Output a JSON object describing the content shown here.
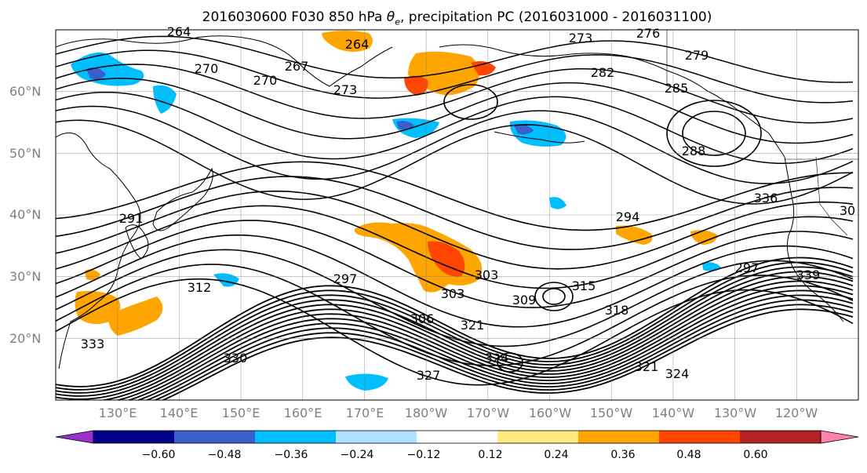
{
  "title": {
    "text_prefix": "2016030600 F030 850 hPa ",
    "theta_symbol": "θ",
    "theta_sub": "e",
    "text_suffix": ", precipitation PC (2016031000 - 2016031100)"
  },
  "map": {
    "projection": "equirectangular",
    "lon_range_east": [
      120,
      250
    ],
    "lat_range": [
      10,
      70
    ],
    "gridlines": true,
    "lat_labels": [
      "60°N",
      "50°N",
      "40°N",
      "30°N",
      "20°N"
    ],
    "lon_labels": [
      "130°E",
      "140°E",
      "150°E",
      "160°E",
      "170°E",
      "180°W",
      "170°W",
      "160°W",
      "150°W",
      "140°W",
      "130°W",
      "120°W"
    ],
    "contour_labels": [
      "264",
      "264",
      "267",
      "270",
      "270",
      "273",
      "273",
      "276",
      "279",
      "282",
      "285",
      "288",
      "291",
      "294",
      "297",
      "297",
      "303",
      "303",
      "306",
      "309",
      "312",
      "315",
      "318",
      "321",
      "321",
      "324",
      "324",
      "327",
      "330",
      "333",
      "336",
      "339",
      "30"
    ],
    "contour_color": "#000000",
    "coastline_color": "#000000"
  },
  "colorbar": {
    "orientation": "horizontal",
    "extend": "both",
    "bins": [
      {
        "color": "#9932cc"
      },
      {
        "color": "#00008b"
      },
      {
        "color": "#3a5fcd"
      },
      {
        "color": "#00bfff"
      },
      {
        "color": "#b0e0ff"
      },
      {
        "color": "#ffffff"
      },
      {
        "color": "#ffeb80"
      },
      {
        "color": "#ffa500"
      },
      {
        "color": "#ff4500"
      },
      {
        "color": "#b22222"
      },
      {
        "color": "#ff82ab"
      }
    ],
    "tick_labels": [
      "−0.60",
      "−0.48",
      "−0.36",
      "−0.24",
      "−0.12",
      "0.12",
      "0.24",
      "0.36",
      "0.48",
      "0.60"
    ]
  }
}
